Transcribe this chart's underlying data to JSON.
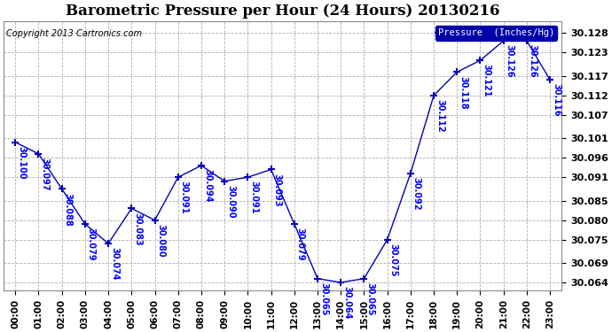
{
  "title": "Barometric Pressure per Hour (24 Hours) 20130216",
  "copyright": "Copyright 2013 Cartronics.com",
  "legend_label": "Pressure  (Inches/Hg)",
  "pressures": [
    30.1,
    30.097,
    30.088,
    30.079,
    30.074,
    30.083,
    30.08,
    30.091,
    30.094,
    30.09,
    30.091,
    30.093,
    30.079,
    30.065,
    30.064,
    30.065,
    30.075,
    30.092,
    30.112,
    30.118,
    30.121,
    30.126,
    30.126,
    30.116
  ],
  "ylim_low": 30.062,
  "ylim_high": 30.131,
  "yticks": [
    30.064,
    30.069,
    30.075,
    30.08,
    30.085,
    30.091,
    30.096,
    30.101,
    30.107,
    30.112,
    30.117,
    30.123,
    30.128
  ],
  "line_color": "#0000bb",
  "label_color": "#0000ff",
  "bg_color": "#ffffff",
  "grid_color": "#b0b0b0",
  "title_color": "#000000"
}
